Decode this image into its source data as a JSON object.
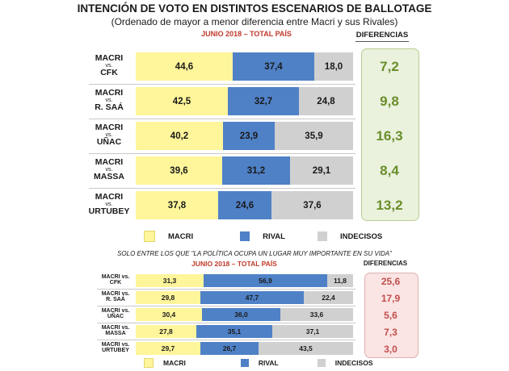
{
  "title": "INTENCIÓN DE VOTO EN DISTINTOS ESCENARIOS DE BALLOTAGE",
  "subtitle": "(Ordenado de mayor a menor diferencia entre Macri y sus Rivales)",
  "colors": {
    "macri": "#fff59a",
    "rival": "#4f81c7",
    "indecisos": "#d0d0d0",
    "diff_green": "#6a8e2a",
    "diff_red": "#c0504d"
  },
  "chart_data": [
    {
      "type": "bar",
      "stacked": true,
      "orientation": "horizontal",
      "period": "JUNIO 2018 – TOTAL PAÍS",
      "diff_header": "DIFERENCIAS",
      "categories": [
        {
          "line1": "MACRI",
          "line2": "vs.",
          "line3": "CFK"
        },
        {
          "line1": "MACRI",
          "line2": "vs.",
          "line3": "R. SAÁ"
        },
        {
          "line1": "MACRI",
          "line2": "vs.",
          "line3": "UÑAC"
        },
        {
          "line1": "MACRI",
          "line2": "vs.",
          "line3": "MASSA"
        },
        {
          "line1": "MACRI",
          "line2": "vs.",
          "line3": "URTUBEY"
        }
      ],
      "series": [
        {
          "name": "MACRI",
          "values": [
            "44,6",
            "42,5",
            "40,2",
            "39,6",
            "37,8"
          ]
        },
        {
          "name": "RIVAL",
          "values": [
            "37,4",
            "32,7",
            "23,9",
            "31,2",
            "24,6"
          ]
        },
        {
          "name": "INDECISOS",
          "values": [
            "18,0",
            "24,8",
            "35,9",
            "29,1",
            "37,6"
          ]
        }
      ],
      "differences": [
        "7,2",
        "9,8",
        "16,3",
        "8,4",
        "13,2"
      ],
      "legend": [
        "MACRI",
        "RIVAL",
        "INDECISOS"
      ]
    },
    {
      "type": "bar",
      "stacked": true,
      "orientation": "horizontal",
      "note": "SOLO ENTRE LOS QUE \"LA POLÍTICA OCUPA UN LUGAR MUY IMPORTANTE EN SU VIDA\"",
      "period": "JUNIO 2018 – TOTAL PAÍS",
      "diff_header": "DIFERENCIAS",
      "categories": [
        {
          "line1": "MACRI vs.",
          "line2": "CFK"
        },
        {
          "line1": "MACRI vs.",
          "line2": "R. SAÁ"
        },
        {
          "line1": "MACRI vs.",
          "line2": "UÑAC"
        },
        {
          "line1": "MACRI vs.",
          "line2": "MASSA"
        },
        {
          "line1": "MACRI vs.",
          "line2": "URTUBEY"
        }
      ],
      "series": [
        {
          "name": "MACRI",
          "values": [
            "31,3",
            "29,8",
            "30,4",
            "27,8",
            "29,7"
          ]
        },
        {
          "name": "RIVAL",
          "values": [
            "56,9",
            "47,7",
            "36,0",
            "35,1",
            "26,7"
          ]
        },
        {
          "name": "INDECISOS",
          "values": [
            "11,8",
            "22,4",
            "33,6",
            "37,1",
            "43,5"
          ]
        }
      ],
      "differences": [
        "25,6",
        "17,9",
        "5,6",
        "7,3",
        "3,0"
      ],
      "legend": [
        "MACRI",
        "RIVAL",
        "INDECISOS"
      ]
    }
  ]
}
